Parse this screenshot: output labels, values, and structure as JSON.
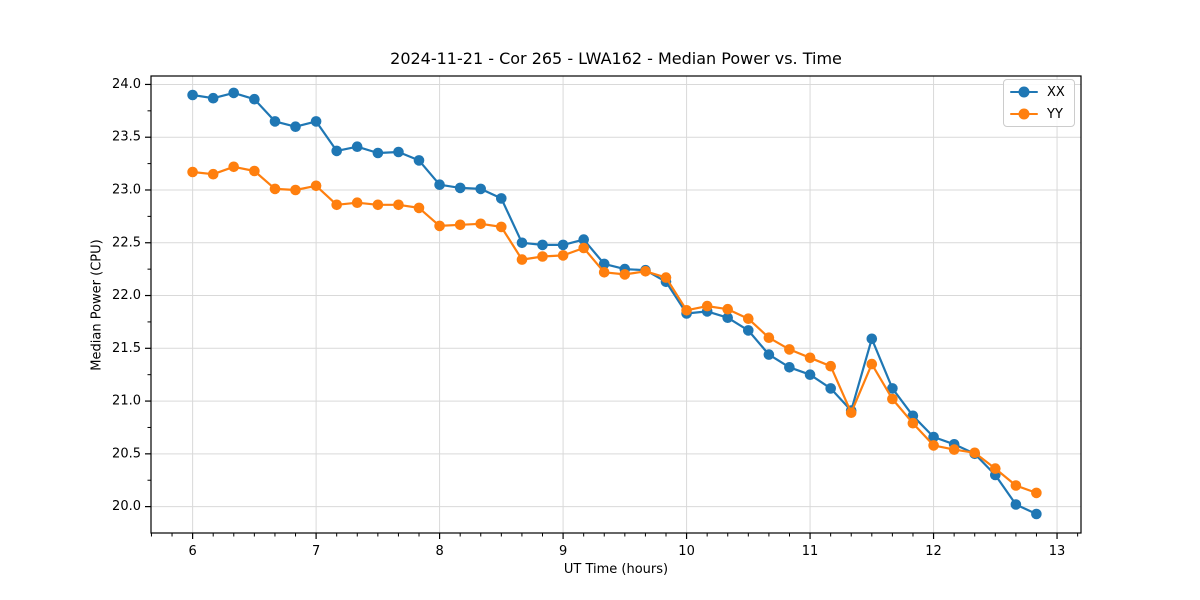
{
  "chart_data": {
    "type": "line",
    "title": "2024-11-21 - Cor 265 - LWA162 - Median Power vs. Time",
    "xlabel": "UT Time (hours)",
    "ylabel": "Median Power (CPU)",
    "xlim": [
      5.663,
      13.194
    ],
    "ylim": [
      19.75,
      24.08
    ],
    "xticks": [
      6,
      7,
      8,
      9,
      10,
      11,
      12,
      13
    ],
    "xticklabels": [
      "6",
      "7",
      "8",
      "9",
      "10",
      "11",
      "12",
      "13"
    ],
    "yticks": [
      20.0,
      20.5,
      21.0,
      21.5,
      22.0,
      22.5,
      23.0,
      23.5,
      24.0
    ],
    "yticklabels": [
      "20.0",
      "20.5",
      "21.0",
      "21.5",
      "22.0",
      "22.5",
      "23.0",
      "23.5",
      "24.0"
    ],
    "x_minor_step": 0.166667,
    "y_minor_step": 0.25,
    "grid": "major",
    "grid_color": "#d9d9d9",
    "spine_color": "#000000",
    "background": "#ffffff",
    "legend_position": "upper right",
    "x": [
      6.0,
      6.167,
      6.333,
      6.5,
      6.667,
      6.833,
      7.0,
      7.167,
      7.333,
      7.5,
      7.667,
      7.833,
      8.0,
      8.167,
      8.333,
      8.5,
      8.667,
      8.833,
      9.0,
      9.167,
      9.333,
      9.5,
      9.667,
      9.833,
      10.0,
      10.167,
      10.333,
      10.5,
      10.667,
      10.833,
      11.0,
      11.167,
      11.333,
      11.5,
      11.667,
      11.833,
      12.0,
      12.167,
      12.333,
      12.5,
      12.667,
      12.833
    ],
    "series": [
      {
        "name": "XX",
        "color": "#1f77b4",
        "values": [
          23.9,
          23.87,
          23.92,
          23.86,
          23.65,
          23.6,
          23.65,
          23.37,
          23.41,
          23.35,
          23.36,
          23.28,
          23.05,
          23.02,
          23.01,
          22.92,
          22.5,
          22.48,
          22.48,
          22.53,
          22.3,
          22.25,
          22.24,
          22.13,
          21.83,
          21.85,
          21.79,
          21.67,
          21.44,
          21.32,
          21.25,
          21.12,
          20.91,
          21.59,
          21.12,
          20.86,
          20.66,
          20.59,
          20.5,
          20.3,
          20.02,
          19.93
        ]
      },
      {
        "name": "YY",
        "color": "#ff7f0e",
        "values": [
          23.17,
          23.15,
          23.22,
          23.18,
          23.01,
          23.0,
          23.04,
          22.86,
          22.88,
          22.86,
          22.86,
          22.83,
          22.66,
          22.67,
          22.68,
          22.65,
          22.34,
          22.37,
          22.38,
          22.45,
          22.22,
          22.2,
          22.23,
          22.17,
          21.86,
          21.9,
          21.87,
          21.78,
          21.6,
          21.49,
          21.41,
          21.33,
          20.89,
          21.35,
          21.02,
          20.79,
          20.58,
          20.54,
          20.51,
          20.36,
          20.2,
          20.13
        ]
      }
    ]
  }
}
